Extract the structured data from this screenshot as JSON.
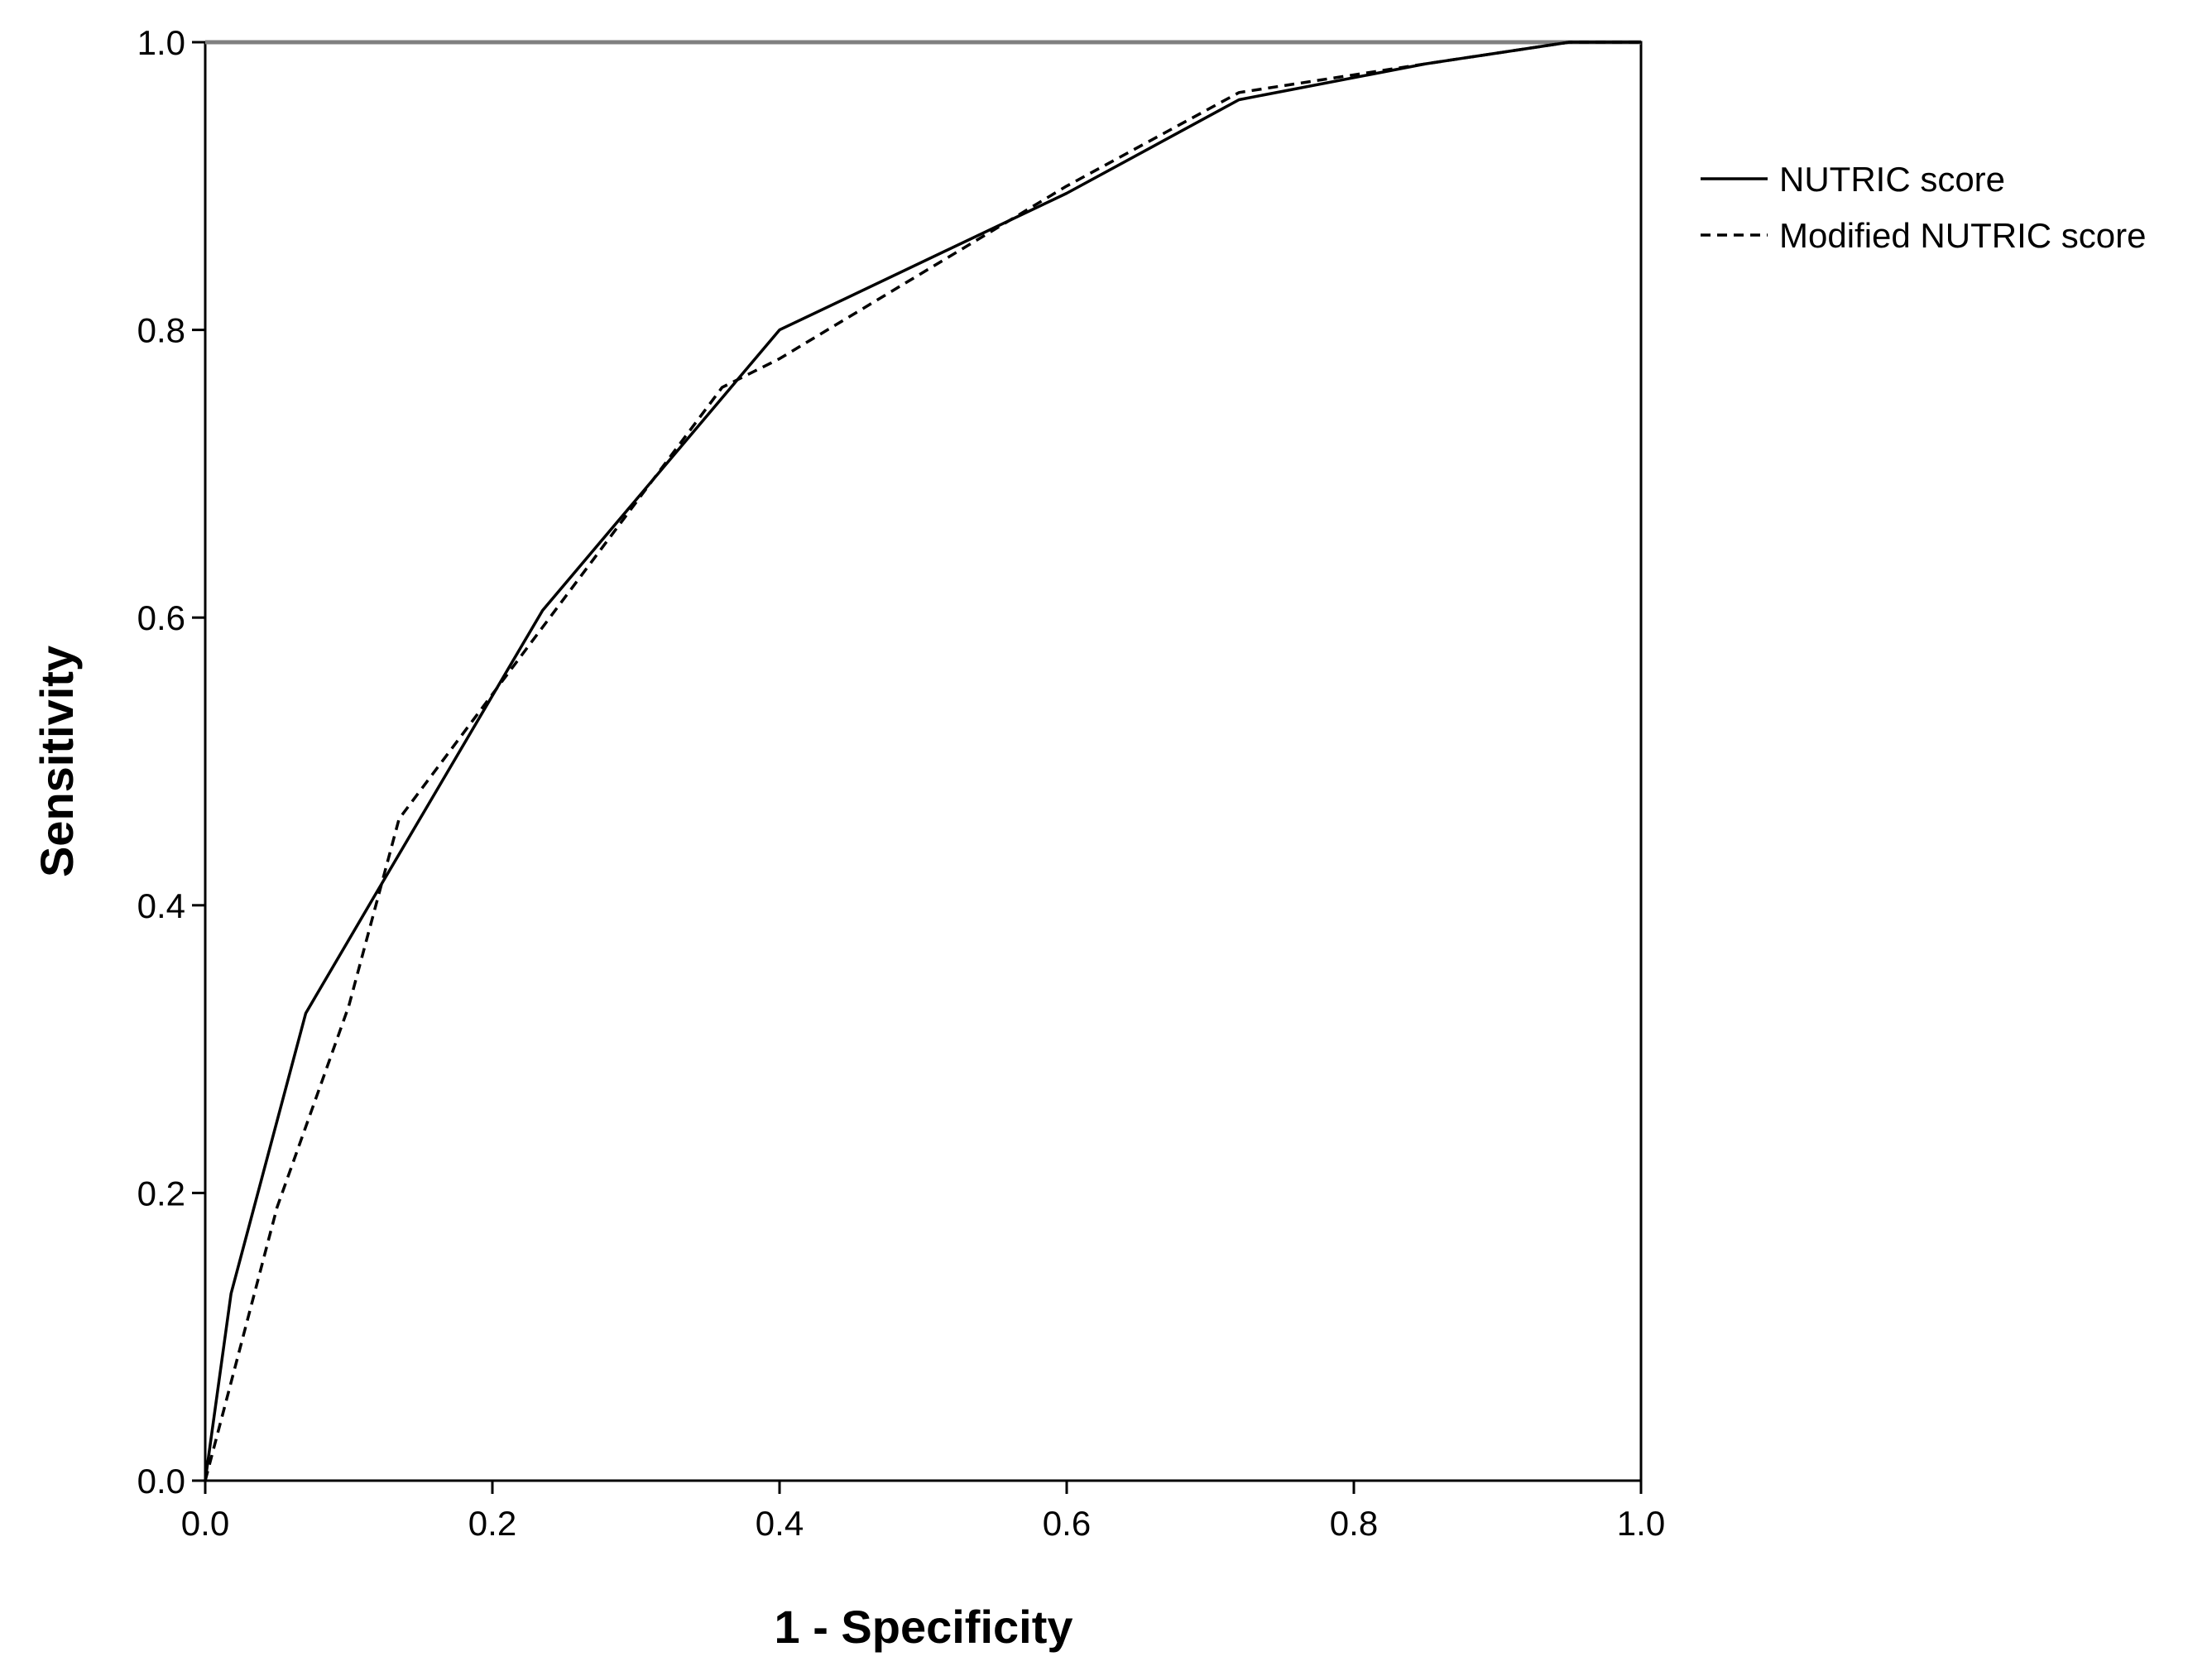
{
  "chart_data": {
    "type": "line",
    "title": "",
    "xlabel": "1 - Specificity",
    "ylabel": "Sensitivity",
    "xlim": [
      0.0,
      1.0
    ],
    "ylim": [
      0.0,
      1.0
    ],
    "x_ticks": [
      "0.0",
      "0.2",
      "0.4",
      "0.6",
      "0.8",
      "1.0"
    ],
    "y_ticks": [
      "0.0",
      "0.2",
      "0.4",
      "0.6",
      "0.8",
      "1.0"
    ],
    "grid": false,
    "legend_position": "top-right outside plot",
    "series": [
      {
        "name": "NUTRIC score",
        "line_style": "solid",
        "color": "#000000",
        "x": [
          0.0,
          0.018,
          0.07,
          0.12,
          0.235,
          0.4,
          0.6,
          0.72,
          0.85,
          0.95,
          1.0
        ],
        "y": [
          0.0,
          0.13,
          0.325,
          0.41,
          0.605,
          0.8,
          0.895,
          0.96,
          0.985,
          1.0,
          1.0
        ]
      },
      {
        "name": "Modified NUTRIC score",
        "line_style": "dashed",
        "color": "#000000",
        "x": [
          0.0,
          0.05,
          0.1,
          0.135,
          0.24,
          0.36,
          0.4,
          0.6,
          0.72,
          0.85,
          0.95,
          1.0
        ],
        "y": [
          0.0,
          0.19,
          0.33,
          0.46,
          0.6,
          0.76,
          0.78,
          0.9,
          0.965,
          0.985,
          1.0,
          1.0
        ]
      }
    ]
  }
}
